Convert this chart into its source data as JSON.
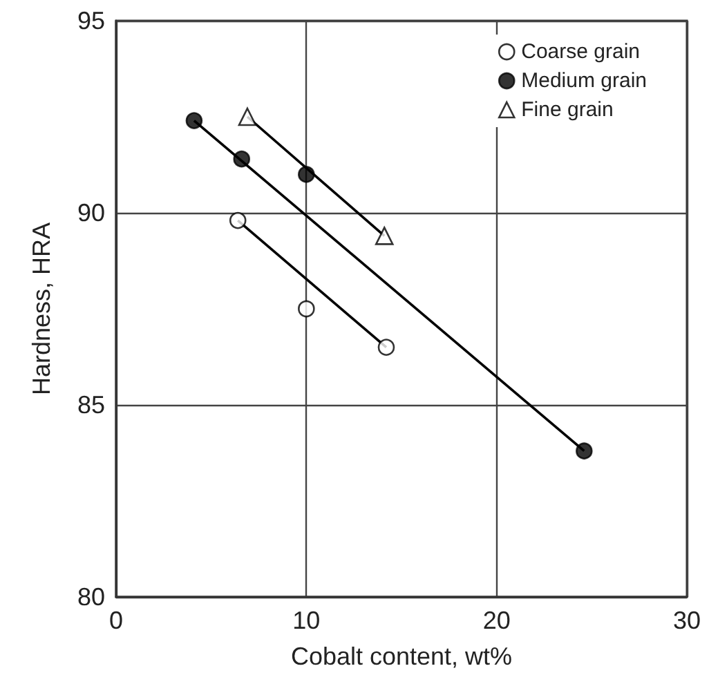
{
  "chart_data": {
    "type": "scatter",
    "xlabel": "Cobalt content, wt%",
    "ylabel": "Hardness, HRA",
    "xlim": [
      0,
      30
    ],
    "xticks": [
      0,
      10,
      20,
      30
    ],
    "ylim": [
      80,
      95
    ],
    "yticks": [
      80,
      85,
      90,
      95
    ],
    "grid": true,
    "legend": "top right",
    "series": [
      {
        "name": "Coarse grain",
        "marker": "circle",
        "color": "#ffffff",
        "x": [
          6.4,
          10.0,
          14.2
        ],
        "values": [
          89.8,
          87.5,
          86.5
        ]
      },
      {
        "name": "Medium grain",
        "marker": "circle",
        "color": "#000000",
        "x": [
          4.1,
          6.6,
          10.0,
          24.6
        ],
        "values": [
          92.4,
          91.4,
          91.0,
          83.8
        ]
      },
      {
        "name": "Fine grain",
        "marker": "triangle",
        "color": "#ffffff",
        "x": [
          6.9,
          14.1
        ],
        "values": [
          92.5,
          89.4
        ]
      },
      {
        "type": "line",
        "marker": "none",
        "color": "#000000",
        "x": [
          6.4,
          14.2
        ],
        "values": [
          89.8,
          86.5
        ]
      },
      {
        "type": "line",
        "marker": "none",
        "color": "#000000",
        "x": [
          4.1,
          24.6
        ],
        "values": [
          92.4,
          83.8
        ]
      },
      {
        "type": "line",
        "marker": "none",
        "color": "#000000",
        "x": [
          6.9,
          14.1
        ],
        "values": [
          92.5,
          89.4
        ]
      }
    ]
  }
}
